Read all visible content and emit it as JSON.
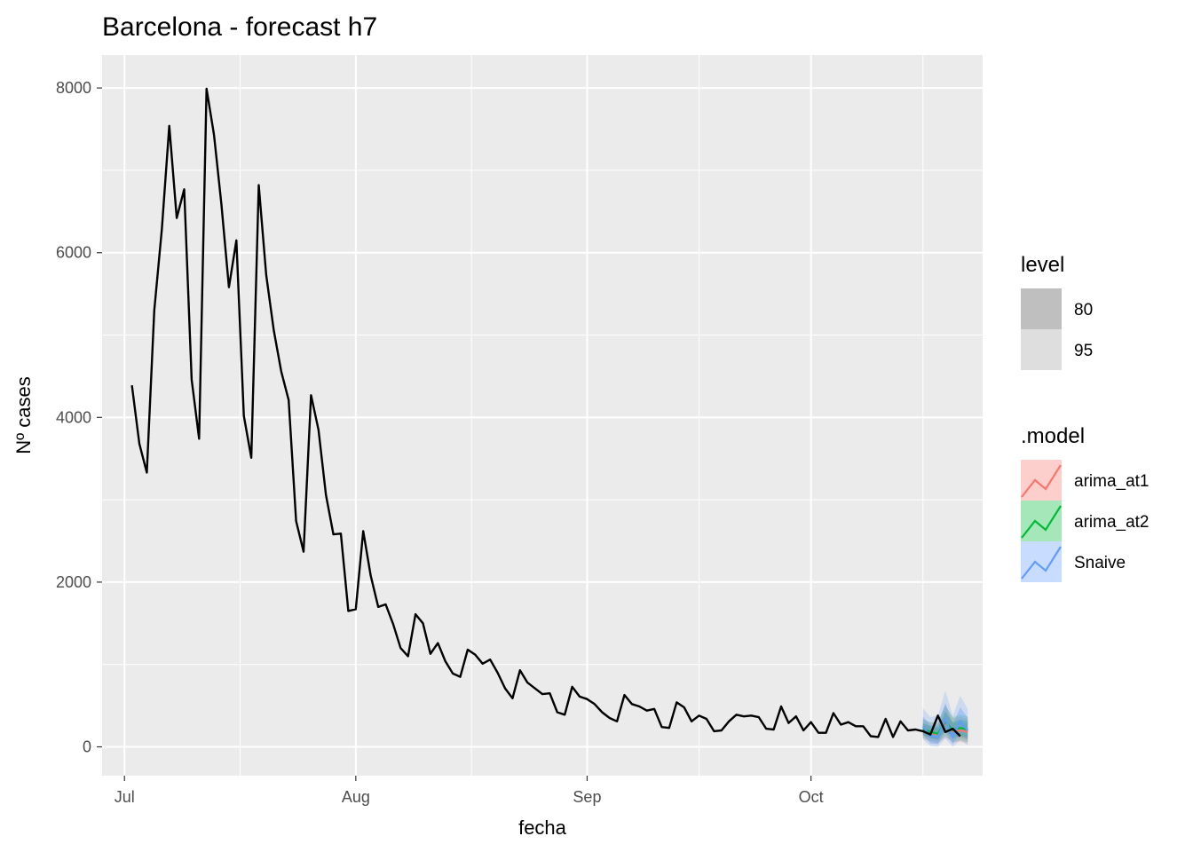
{
  "chart_data": {
    "type": "line",
    "title": "Barcelona - forecast h7",
    "xlabel": "fecha",
    "ylabel": "Nº cases",
    "x_ticks": [
      {
        "label": "Jul",
        "date": "2020-07-01"
      },
      {
        "label": "Aug",
        "date": "2020-08-01"
      },
      {
        "label": "Sep",
        "date": "2020-09-01"
      },
      {
        "label": "Oct",
        "date": "2020-10-01"
      }
    ],
    "y_ticks": [
      0,
      2000,
      4000,
      6000,
      8000
    ],
    "ylim": [
      -350,
      8400
    ],
    "xlim": [
      "2020-06-28",
      "2020-10-24"
    ],
    "grid": true,
    "legend_placement": "right",
    "series": [
      {
        "color": "#000000",
        "start_date": "2020-07-02",
        "values": [
          4390,
          3680,
          3330,
          5300,
          6280,
          7540,
          6420,
          6770,
          4460,
          3740,
          7990,
          7430,
          6580,
          5580,
          6150,
          4020,
          3510,
          6820,
          5730,
          5060,
          4560,
          4210,
          2740,
          2370,
          4270,
          3850,
          3060,
          2580,
          2590,
          1650,
          1670,
          2620,
          2080,
          1700,
          1730,
          1490,
          1200,
          1100,
          1610,
          1500,
          1130,
          1260,
          1040,
          890,
          850,
          1180,
          1120,
          1010,
          1060,
          900,
          710,
          590,
          930,
          780,
          710,
          640,
          650,
          420,
          390,
          730,
          610,
          580,
          520,
          420,
          350,
          310,
          630,
          520,
          490,
          440,
          460,
          240,
          230,
          540,
          480,
          310,
          380,
          340,
          190,
          200,
          310,
          390,
          370,
          380,
          360,
          220,
          210,
          490,
          290,
          370,
          200,
          300,
          170,
          170,
          410,
          270,
          300,
          250,
          250,
          130,
          120,
          340,
          120,
          310,
          200,
          210,
          190,
          150,
          380,
          180,
          220,
          130
        ]
      }
    ],
    "forecasts": [
      {
        "model": "arima_at1",
        "color": "#F8766D",
        "start_date": "2020-10-16",
        "mean": [
          210,
          170,
          150,
          300,
          190,
          200,
          180
        ],
        "lo80": [
          140,
          100,
          80,
          180,
          100,
          110,
          90
        ],
        "hi80": [
          280,
          240,
          230,
          420,
          290,
          300,
          280
        ],
        "lo95": [
          100,
          60,
          40,
          110,
          50,
          60,
          40
        ],
        "hi95": [
          330,
          290,
          290,
          500,
          350,
          360,
          340
        ]
      },
      {
        "model": "arima_at2",
        "color": "#00BA38",
        "start_date": "2020-10-16",
        "mean": [
          220,
          180,
          160,
          310,
          200,
          230,
          210
        ],
        "lo80": [
          150,
          110,
          90,
          200,
          110,
          130,
          110
        ],
        "hi80": [
          290,
          250,
          240,
          430,
          300,
          330,
          310
        ],
        "lo95": [
          110,
          70,
          50,
          130,
          60,
          80,
          60
        ],
        "hi95": [
          340,
          300,
          300,
          510,
          360,
          390,
          370
        ]
      },
      {
        "model": "Snaive",
        "color": "#619CFF",
        "start_date": "2020-10-16",
        "mean": [
          250,
          130,
          120,
          340,
          120,
          310,
          200
        ],
        "lo80": [
          150,
          40,
          30,
          190,
          30,
          160,
          80
        ],
        "hi80": [
          370,
          260,
          270,
          530,
          270,
          480,
          350
        ],
        "lo95": [
          90,
          10,
          0,
          100,
          0,
          80,
          20
        ],
        "hi95": [
          470,
          360,
          380,
          680,
          380,
          620,
          460
        ]
      }
    ],
    "legend_level": {
      "title": "level",
      "items": [
        {
          "label": "80",
          "color": "#bfbfbf"
        },
        {
          "label": "95",
          "color": "#dedede"
        }
      ]
    },
    "legend_model": {
      "title": ".model",
      "items": [
        {
          "label": "arima_at1",
          "color": "#F8766D",
          "fill": "#F8766D"
        },
        {
          "label": "arima_at2",
          "color": "#00BA38",
          "fill": "#00BA38"
        },
        {
          "label": "Snaive",
          "color": "#619CFF",
          "fill": "#619CFF"
        }
      ]
    }
  }
}
